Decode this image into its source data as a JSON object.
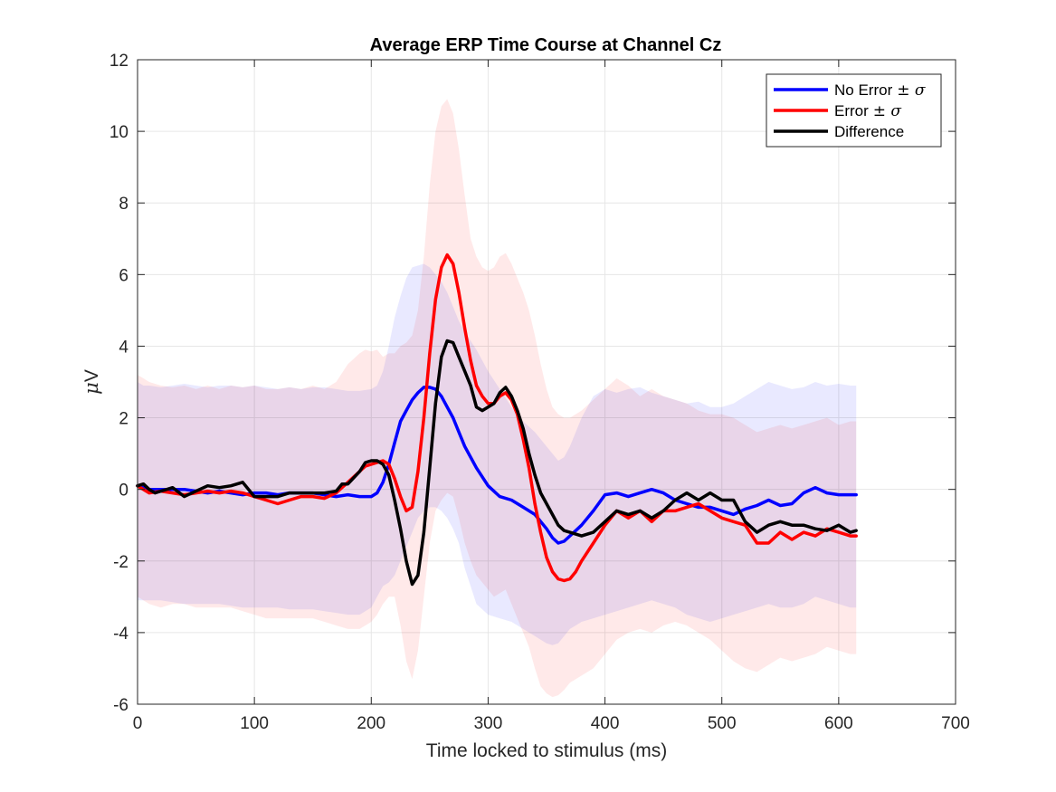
{
  "chart_data": {
    "type": "line",
    "title": "Average ERP Time Course at Channel Cz",
    "xlabel": "Time locked to stimulus (ms)",
    "ylabel_prefix": "μ",
    "ylabel_unit": "V",
    "xlim": [
      0,
      700
    ],
    "ylim": [
      -6,
      12
    ],
    "xticks": [
      0,
      100,
      200,
      300,
      400,
      500,
      600,
      700
    ],
    "yticks": [
      -6,
      -4,
      -2,
      0,
      2,
      4,
      6,
      8,
      10,
      12
    ],
    "xtick_labels": [
      "0",
      "100",
      "200",
      "300",
      "400",
      "500",
      "600",
      "700"
    ],
    "ytick_labels": [
      "-6",
      "-4",
      "-2",
      "0",
      "2",
      "4",
      "6",
      "8",
      "10",
      "12"
    ],
    "grid": true,
    "legend_position": "top-right",
    "legend": [
      {
        "label": "No Error",
        "sym": "± σ",
        "color": "#0000ff"
      },
      {
        "label": "Error",
        "sym": "± σ",
        "color": "#ff0000"
      },
      {
        "label": "Difference",
        "sym": "",
        "color": "#000000"
      }
    ],
    "series": [
      {
        "name": "No Error",
        "color": "#0000ff",
        "band_color": "#e0e0ff",
        "x": [
          0,
          5,
          10,
          20,
          30,
          40,
          50,
          60,
          70,
          80,
          90,
          100,
          110,
          120,
          130,
          140,
          150,
          160,
          170,
          180,
          190,
          200,
          205,
          210,
          215,
          220,
          225,
          230,
          235,
          240,
          245,
          250,
          255,
          260,
          265,
          270,
          275,
          280,
          290,
          300,
          310,
          320,
          330,
          340,
          350,
          355,
          360,
          365,
          370,
          375,
          380,
          390,
          400,
          410,
          420,
          430,
          440,
          450,
          460,
          470,
          480,
          490,
          500,
          510,
          520,
          530,
          540,
          550,
          560,
          570,
          580,
          590,
          600,
          610,
          615
        ],
        "y": [
          0.1,
          0.05,
          0.0,
          0.0,
          0.0,
          0.0,
          -0.05,
          -0.1,
          -0.05,
          -0.1,
          -0.15,
          -0.1,
          -0.1,
          -0.15,
          -0.1,
          -0.1,
          -0.1,
          -0.15,
          -0.2,
          -0.15,
          -0.2,
          -0.2,
          -0.1,
          0.2,
          0.7,
          1.3,
          1.9,
          2.2,
          2.5,
          2.7,
          2.85,
          2.85,
          2.8,
          2.6,
          2.3,
          2.0,
          1.6,
          1.2,
          0.6,
          0.1,
          -0.2,
          -0.3,
          -0.5,
          -0.7,
          -1.1,
          -1.35,
          -1.5,
          -1.45,
          -1.3,
          -1.15,
          -1.0,
          -0.6,
          -0.15,
          -0.1,
          -0.2,
          -0.1,
          0.0,
          -0.1,
          -0.3,
          -0.4,
          -0.5,
          -0.5,
          -0.6,
          -0.7,
          -0.55,
          -0.45,
          -0.3,
          -0.45,
          -0.4,
          -0.1,
          0.05,
          -0.1,
          -0.15,
          -0.15,
          -0.15
        ],
        "upper": [
          3.0,
          2.9,
          2.9,
          2.85,
          2.9,
          2.95,
          2.9,
          2.85,
          2.9,
          2.9,
          2.85,
          2.9,
          2.85,
          2.8,
          2.85,
          2.8,
          2.85,
          2.85,
          2.8,
          2.75,
          2.75,
          2.8,
          2.9,
          3.3,
          4.0,
          4.8,
          5.4,
          5.9,
          6.2,
          6.25,
          6.3,
          6.2,
          6.0,
          5.8,
          5.5,
          5.1,
          4.7,
          4.4,
          3.9,
          3.3,
          2.8,
          2.3,
          1.9,
          1.6,
          1.2,
          1.0,
          0.8,
          0.9,
          1.2,
          1.6,
          2.0,
          2.6,
          2.8,
          2.7,
          2.8,
          2.85,
          2.7,
          2.6,
          2.5,
          2.4,
          2.45,
          2.3,
          2.3,
          2.4,
          2.6,
          2.8,
          3.0,
          2.9,
          2.8,
          2.85,
          3.0,
          2.9,
          2.95,
          2.9,
          2.9
        ],
        "lower": [
          -3.1,
          -3.1,
          -3.1,
          -3.1,
          -3.15,
          -3.2,
          -3.2,
          -3.2,
          -3.2,
          -3.25,
          -3.3,
          -3.3,
          -3.3,
          -3.3,
          -3.35,
          -3.35,
          -3.35,
          -3.4,
          -3.45,
          -3.5,
          -3.5,
          -3.3,
          -3.0,
          -2.7,
          -2.6,
          -2.4,
          -2.0,
          -1.6,
          -1.2,
          -0.8,
          -0.6,
          -0.5,
          -0.5,
          -0.6,
          -0.8,
          -1.1,
          -1.5,
          -2.2,
          -3.2,
          -3.5,
          -3.6,
          -3.7,
          -3.9,
          -4.1,
          -4.3,
          -4.35,
          -4.3,
          -4.1,
          -3.9,
          -3.8,
          -3.7,
          -3.6,
          -3.5,
          -3.4,
          -3.3,
          -3.2,
          -3.1,
          -3.2,
          -3.3,
          -3.5,
          -3.6,
          -3.7,
          -3.6,
          -3.5,
          -3.4,
          -3.3,
          -3.2,
          -3.3,
          -3.3,
          -3.2,
          -3.0,
          -3.1,
          -3.2,
          -3.3,
          -3.3
        ]
      },
      {
        "name": "Error",
        "color": "#ff0000",
        "band_color": "#ffe0e0",
        "x": [
          0,
          5,
          10,
          20,
          30,
          40,
          50,
          60,
          70,
          80,
          90,
          100,
          110,
          120,
          130,
          140,
          150,
          160,
          170,
          180,
          190,
          195,
          200,
          205,
          210,
          215,
          220,
          225,
          230,
          235,
          240,
          245,
          250,
          255,
          260,
          265,
          270,
          275,
          280,
          285,
          290,
          295,
          300,
          305,
          310,
          315,
          320,
          325,
          330,
          335,
          340,
          345,
          350,
          355,
          360,
          365,
          370,
          375,
          380,
          390,
          400,
          410,
          420,
          430,
          440,
          450,
          460,
          470,
          480,
          490,
          500,
          510,
          520,
          530,
          540,
          550,
          560,
          570,
          580,
          590,
          600,
          610,
          615
        ],
        "y": [
          0.1,
          0.0,
          -0.1,
          -0.05,
          -0.1,
          -0.15,
          -0.1,
          -0.05,
          -0.1,
          -0.05,
          -0.1,
          -0.2,
          -0.3,
          -0.4,
          -0.3,
          -0.2,
          -0.2,
          -0.25,
          -0.1,
          0.2,
          0.5,
          0.65,
          0.7,
          0.75,
          0.8,
          0.7,
          0.3,
          -0.2,
          -0.6,
          -0.5,
          0.5,
          2.0,
          3.8,
          5.3,
          6.2,
          6.55,
          6.3,
          5.5,
          4.5,
          3.6,
          2.9,
          2.6,
          2.4,
          2.4,
          2.6,
          2.7,
          2.5,
          2.1,
          1.4,
          0.6,
          -0.4,
          -1.2,
          -1.9,
          -2.3,
          -2.5,
          -2.55,
          -2.5,
          -2.3,
          -2.0,
          -1.5,
          -1.0,
          -0.6,
          -0.8,
          -0.6,
          -0.9,
          -0.6,
          -0.6,
          -0.5,
          -0.4,
          -0.6,
          -0.8,
          -0.9,
          -1.0,
          -1.5,
          -1.5,
          -1.2,
          -1.4,
          -1.2,
          -1.3,
          -1.1,
          -1.2,
          -1.3,
          -1.3
        ],
        "upper": [
          3.2,
          3.1,
          3.0,
          2.9,
          2.85,
          2.9,
          2.8,
          2.9,
          2.8,
          2.9,
          2.85,
          2.9,
          2.8,
          2.8,
          2.85,
          2.8,
          2.9,
          2.8,
          3.0,
          3.5,
          3.8,
          3.9,
          3.85,
          3.9,
          3.7,
          3.8,
          3.8,
          4.0,
          4.1,
          4.3,
          5.0,
          6.5,
          8.5,
          10.0,
          10.7,
          10.9,
          10.5,
          9.5,
          8.2,
          7.0,
          6.5,
          6.2,
          6.1,
          6.2,
          6.5,
          6.6,
          6.3,
          5.9,
          5.5,
          5.0,
          4.3,
          3.5,
          2.8,
          2.3,
          2.1,
          2.0,
          2.0,
          2.1,
          2.2,
          2.5,
          2.8,
          3.1,
          2.9,
          2.6,
          2.8,
          2.6,
          2.5,
          2.4,
          2.2,
          2.1,
          2.1,
          2.0,
          1.8,
          1.6,
          1.7,
          1.8,
          1.7,
          1.8,
          1.9,
          2.0,
          1.8,
          1.9,
          1.9
        ],
        "lower": [
          -3.0,
          -3.1,
          -3.2,
          -3.3,
          -3.2,
          -3.2,
          -3.3,
          -3.3,
          -3.3,
          -3.3,
          -3.4,
          -3.5,
          -3.6,
          -3.6,
          -3.6,
          -3.6,
          -3.6,
          -3.7,
          -3.8,
          -3.9,
          -3.9,
          -3.8,
          -3.7,
          -3.5,
          -3.2,
          -3.0,
          -3.0,
          -3.8,
          -4.8,
          -5.3,
          -4.5,
          -3.0,
          -1.5,
          -0.6,
          -0.3,
          -0.1,
          -0.2,
          -0.8,
          -1.5,
          -2.0,
          -2.4,
          -2.6,
          -2.8,
          -3.0,
          -2.9,
          -2.8,
          -3.2,
          -3.6,
          -4.0,
          -4.4,
          -5.0,
          -5.5,
          -5.7,
          -5.8,
          -5.75,
          -5.6,
          -5.4,
          -5.3,
          -5.2,
          -5.0,
          -4.6,
          -4.2,
          -4.0,
          -3.9,
          -4.0,
          -3.8,
          -3.7,
          -3.8,
          -4.0,
          -4.2,
          -4.5,
          -4.8,
          -5.0,
          -5.1,
          -4.9,
          -4.7,
          -4.8,
          -4.7,
          -4.6,
          -4.4,
          -4.5,
          -4.6,
          -4.6
        ]
      },
      {
        "name": "Difference",
        "color": "#000000",
        "x": [
          0,
          5,
          10,
          15,
          20,
          25,
          30,
          40,
          50,
          60,
          70,
          80,
          90,
          100,
          110,
          120,
          130,
          140,
          150,
          160,
          170,
          175,
          180,
          190,
          195,
          200,
          205,
          210,
          215,
          220,
          225,
          230,
          235,
          240,
          245,
          250,
          255,
          260,
          265,
          270,
          275,
          280,
          285,
          290,
          295,
          300,
          305,
          310,
          315,
          320,
          325,
          330,
          335,
          340,
          345,
          350,
          355,
          360,
          365,
          370,
          375,
          380,
          385,
          390,
          400,
          410,
          420,
          430,
          440,
          450,
          460,
          470,
          480,
          490,
          500,
          510,
          520,
          530,
          540,
          550,
          560,
          570,
          580,
          590,
          600,
          610,
          615
        ],
        "y": [
          0.1,
          0.15,
          0.0,
          -0.1,
          -0.05,
          0.0,
          0.05,
          -0.2,
          -0.05,
          0.1,
          0.05,
          0.1,
          0.2,
          -0.2,
          -0.2,
          -0.2,
          -0.1,
          -0.1,
          -0.1,
          -0.1,
          -0.05,
          0.15,
          0.15,
          0.5,
          0.75,
          0.8,
          0.8,
          0.7,
          0.4,
          -0.3,
          -1.1,
          -2.0,
          -2.65,
          -2.4,
          -1.2,
          0.6,
          2.4,
          3.7,
          4.15,
          4.1,
          3.7,
          3.3,
          2.9,
          2.3,
          2.2,
          2.3,
          2.4,
          2.7,
          2.85,
          2.6,
          2.2,
          1.7,
          1.0,
          0.4,
          -0.1,
          -0.4,
          -0.7,
          -1.0,
          -1.15,
          -1.2,
          -1.25,
          -1.3,
          -1.25,
          -1.2,
          -0.9,
          -0.6,
          -0.7,
          -0.6,
          -0.8,
          -0.6,
          -0.3,
          -0.1,
          -0.3,
          -0.1,
          -0.3,
          -0.3,
          -0.9,
          -1.2,
          -1.0,
          -0.9,
          -1.0,
          -1.0,
          -1.1,
          -1.15,
          -1.0,
          -1.2,
          -1.15
        ]
      }
    ]
  }
}
